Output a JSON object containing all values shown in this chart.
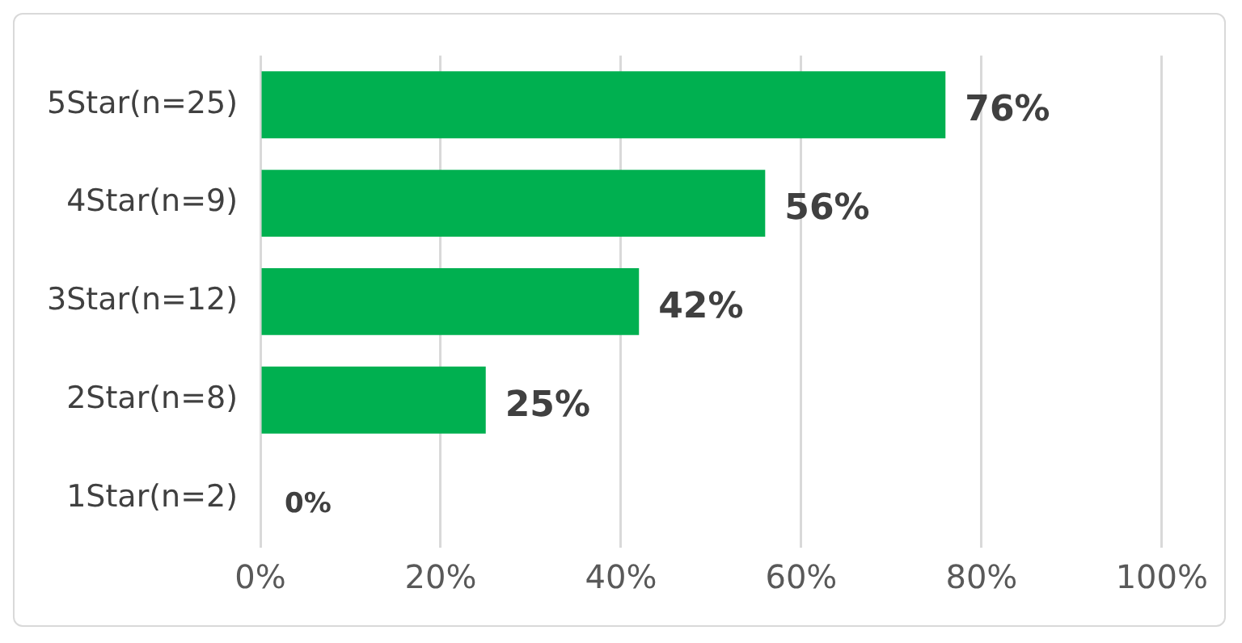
{
  "chart_data": {
    "type": "bar",
    "orientation": "horizontal",
    "categories": [
      "5Star(n=25)",
      "4Star(n=9)",
      "3Star(n=12)",
      "2Star(n=8)",
      "1Star(n=2)"
    ],
    "values": [
      76,
      56,
      42,
      25,
      0
    ],
    "value_labels": [
      "76%",
      "56%",
      "42%",
      "25%",
      "0%"
    ],
    "color": "#00b050",
    "xlim": [
      0,
      100
    ],
    "xticks": [
      {
        "value": 0,
        "label": "0%"
      },
      {
        "value": 20,
        "label": "20%"
      },
      {
        "value": 40,
        "label": "40%"
      },
      {
        "value": 60,
        "label": "60%"
      },
      {
        "value": 80,
        "label": "80%"
      },
      {
        "value": 100,
        "label": "100%"
      }
    ],
    "grid": "x",
    "legend": false
  }
}
